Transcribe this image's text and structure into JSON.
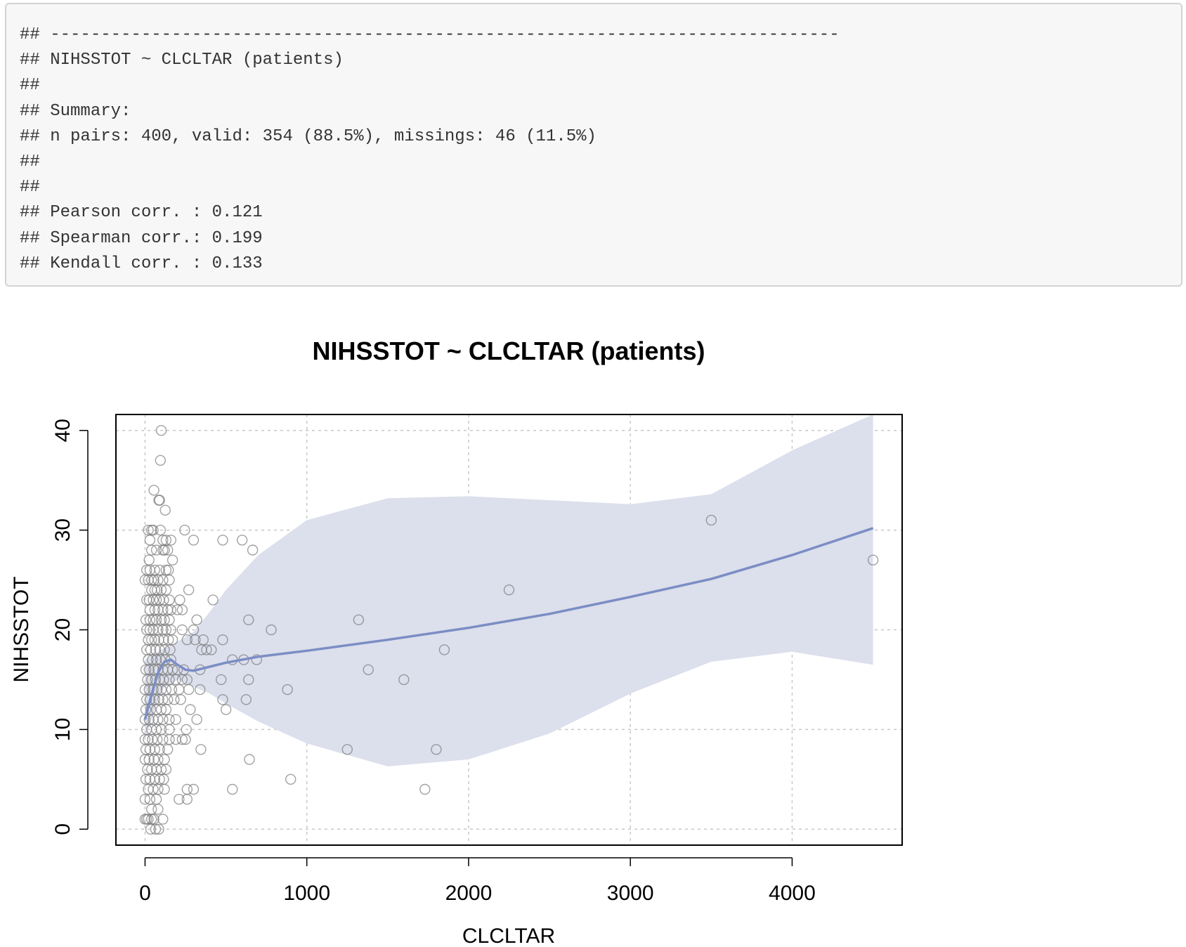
{
  "console": {
    "lines": [
      "## ------------------------------------------------------------------------------",
      "## NIHSSTOT ~ CLCLTAR (patients)",
      "##",
      "## Summary:",
      "## n pairs: 400, valid: 354 (88.5%), missings: 46 (11.5%)",
      "##",
      "##",
      "## Pearson corr. : 0.121",
      "## Spearman corr.: 0.199",
      "## Kendall corr. : 0.133"
    ]
  },
  "chart_data": {
    "type": "scatter",
    "title": "NIHSSTOT ~ CLCLTAR (patients)",
    "xlabel": "CLCLTAR",
    "ylabel": "NIHSSTOT",
    "xlim": [
      -180,
      4680
    ],
    "ylim": [
      -1.6,
      41.6
    ],
    "xticks": [
      0,
      1000,
      2000,
      3000,
      4000
    ],
    "xtick_labels": [
      "0",
      "1000",
      "2000",
      "3000",
      "4000"
    ],
    "yticks": [
      0,
      10,
      20,
      30,
      40
    ],
    "ytick_labels": [
      "0",
      "10",
      "20",
      "30",
      "40"
    ],
    "grid": true,
    "colors": {
      "points": "#7a7a7a",
      "smooth_line": "#7b8dc4",
      "confidence_band": "#dcdfec",
      "grid": "#c8c8c8"
    },
    "points": [
      [
        100,
        40
      ],
      [
        95,
        37
      ],
      [
        55,
        34
      ],
      [
        85,
        33
      ],
      [
        90,
        33
      ],
      [
        125,
        32
      ],
      [
        20,
        30
      ],
      [
        40,
        30
      ],
      [
        50,
        30
      ],
      [
        95,
        30
      ],
      [
        245,
        30
      ],
      [
        30,
        29
      ],
      [
        110,
        29
      ],
      [
        130,
        29
      ],
      [
        160,
        29
      ],
      [
        300,
        29
      ],
      [
        480,
        29
      ],
      [
        600,
        29
      ],
      [
        40,
        28
      ],
      [
        70,
        28
      ],
      [
        110,
        28
      ],
      [
        120,
        28
      ],
      [
        140,
        28
      ],
      [
        665,
        28
      ],
      [
        25,
        27
      ],
      [
        170,
        27
      ],
      [
        10,
        26
      ],
      [
        30,
        26
      ],
      [
        60,
        26
      ],
      [
        90,
        26
      ],
      [
        130,
        26
      ],
      [
        145,
        26
      ],
      [
        0,
        25
      ],
      [
        20,
        25
      ],
      [
        40,
        25
      ],
      [
        55,
        25
      ],
      [
        80,
        25
      ],
      [
        110,
        25
      ],
      [
        150,
        25
      ],
      [
        40,
        24
      ],
      [
        60,
        24
      ],
      [
        75,
        24
      ],
      [
        100,
        24
      ],
      [
        130,
        24
      ],
      [
        270,
        24
      ],
      [
        2250,
        24
      ],
      [
        10,
        23
      ],
      [
        25,
        23
      ],
      [
        50,
        23
      ],
      [
        70,
        23
      ],
      [
        90,
        23
      ],
      [
        115,
        23
      ],
      [
        150,
        23
      ],
      [
        215,
        23
      ],
      [
        420,
        23
      ],
      [
        30,
        22
      ],
      [
        60,
        22
      ],
      [
        80,
        22
      ],
      [
        110,
        22
      ],
      [
        140,
        22
      ],
      [
        160,
        22
      ],
      [
        200,
        22
      ],
      [
        230,
        22
      ],
      [
        5,
        21
      ],
      [
        30,
        21
      ],
      [
        50,
        21
      ],
      [
        70,
        21
      ],
      [
        100,
        21
      ],
      [
        120,
        21
      ],
      [
        150,
        21
      ],
      [
        320,
        21
      ],
      [
        640,
        21
      ],
      [
        1320,
        21
      ],
      [
        10,
        20
      ],
      [
        30,
        20
      ],
      [
        50,
        20
      ],
      [
        80,
        20
      ],
      [
        110,
        20
      ],
      [
        130,
        20
      ],
      [
        160,
        20
      ],
      [
        230,
        20
      ],
      [
        300,
        20
      ],
      [
        780,
        20
      ],
      [
        20,
        19
      ],
      [
        40,
        19
      ],
      [
        60,
        19
      ],
      [
        85,
        19
      ],
      [
        115,
        19
      ],
      [
        145,
        19
      ],
      [
        170,
        19
      ],
      [
        260,
        19
      ],
      [
        310,
        19
      ],
      [
        360,
        19
      ],
      [
        480,
        19
      ],
      [
        10,
        18
      ],
      [
        35,
        18
      ],
      [
        65,
        18
      ],
      [
        90,
        18
      ],
      [
        120,
        18
      ],
      [
        155,
        18
      ],
      [
        350,
        18
      ],
      [
        380,
        18
      ],
      [
        410,
        18
      ],
      [
        1850,
        18
      ],
      [
        20,
        17
      ],
      [
        45,
        17
      ],
      [
        70,
        17
      ],
      [
        95,
        17
      ],
      [
        125,
        17
      ],
      [
        160,
        17
      ],
      [
        540,
        17
      ],
      [
        610,
        17
      ],
      [
        690,
        17
      ],
      [
        5,
        16
      ],
      [
        25,
        16
      ],
      [
        55,
        16
      ],
      [
        80,
        16
      ],
      [
        110,
        16
      ],
      [
        140,
        16
      ],
      [
        170,
        16
      ],
      [
        200,
        16
      ],
      [
        240,
        16
      ],
      [
        340,
        16
      ],
      [
        1380,
        16
      ],
      [
        15,
        15
      ],
      [
        40,
        15
      ],
      [
        65,
        15
      ],
      [
        90,
        15
      ],
      [
        115,
        15
      ],
      [
        150,
        15
      ],
      [
        190,
        15
      ],
      [
        230,
        15
      ],
      [
        260,
        15
      ],
      [
        470,
        15
      ],
      [
        640,
        15
      ],
      [
        1600,
        15
      ],
      [
        0,
        14
      ],
      [
        25,
        14
      ],
      [
        50,
        14
      ],
      [
        75,
        14
      ],
      [
        100,
        14
      ],
      [
        130,
        14
      ],
      [
        165,
        14
      ],
      [
        210,
        14
      ],
      [
        270,
        14
      ],
      [
        340,
        14
      ],
      [
        880,
        14
      ],
      [
        10,
        13
      ],
      [
        30,
        13
      ],
      [
        60,
        13
      ],
      [
        85,
        13
      ],
      [
        110,
        13
      ],
      [
        140,
        13
      ],
      [
        180,
        13
      ],
      [
        220,
        13
      ],
      [
        480,
        13
      ],
      [
        625,
        13
      ],
      [
        5,
        12
      ],
      [
        35,
        12
      ],
      [
        70,
        12
      ],
      [
        100,
        12
      ],
      [
        130,
        12
      ],
      [
        280,
        12
      ],
      [
        500,
        12
      ],
      [
        0,
        11
      ],
      [
        25,
        11
      ],
      [
        50,
        11
      ],
      [
        80,
        11
      ],
      [
        110,
        11
      ],
      [
        150,
        11
      ],
      [
        190,
        11
      ],
      [
        320,
        11
      ],
      [
        10,
        10
      ],
      [
        40,
        10
      ],
      [
        70,
        10
      ],
      [
        100,
        10
      ],
      [
        150,
        10
      ],
      [
        255,
        10
      ],
      [
        0,
        9
      ],
      [
        20,
        9
      ],
      [
        45,
        9
      ],
      [
        75,
        9
      ],
      [
        110,
        9
      ],
      [
        150,
        9
      ],
      [
        190,
        9
      ],
      [
        230,
        9
      ],
      [
        250,
        9
      ],
      [
        5,
        8
      ],
      [
        30,
        8
      ],
      [
        60,
        8
      ],
      [
        90,
        8
      ],
      [
        140,
        8
      ],
      [
        345,
        8
      ],
      [
        1250,
        8
      ],
      [
        1800,
        8
      ],
      [
        0,
        7
      ],
      [
        25,
        7
      ],
      [
        55,
        7
      ],
      [
        80,
        7
      ],
      [
        120,
        7
      ],
      [
        645,
        7
      ],
      [
        15,
        6
      ],
      [
        40,
        6
      ],
      [
        70,
        6
      ],
      [
        100,
        6
      ],
      [
        130,
        6
      ],
      [
        5,
        5
      ],
      [
        30,
        5
      ],
      [
        60,
        5
      ],
      [
        90,
        5
      ],
      [
        115,
        5
      ],
      [
        900,
        5
      ],
      [
        20,
        4
      ],
      [
        50,
        4
      ],
      [
        80,
        4
      ],
      [
        120,
        4
      ],
      [
        260,
        4
      ],
      [
        300,
        4
      ],
      [
        540,
        4
      ],
      [
        1730,
        4
      ],
      [
        0,
        3
      ],
      [
        30,
        3
      ],
      [
        70,
        3
      ],
      [
        210,
        3
      ],
      [
        260,
        3
      ],
      [
        40,
        2
      ],
      [
        80,
        2
      ],
      [
        0,
        1
      ],
      [
        10,
        1
      ],
      [
        20,
        1
      ],
      [
        40,
        1
      ],
      [
        55,
        1
      ],
      [
        110,
        1
      ],
      [
        35,
        0
      ],
      [
        65,
        0
      ],
      [
        85,
        0
      ],
      [
        3500,
        31
      ],
      [
        4500,
        27
      ]
    ],
    "smooth": {
      "x": [
        0,
        40,
        80,
        120,
        160,
        200,
        250,
        300,
        400,
        500,
        700,
        1000,
        1500,
        2000,
        2500,
        3000,
        3500,
        4000,
        4500
      ],
      "y": [
        11,
        13.5,
        15.7,
        16.8,
        17.0,
        16.5,
        16.0,
        15.9,
        16.3,
        16.7,
        17.3,
        17.9,
        19.0,
        20.2,
        21.6,
        23.3,
        25.1,
        27.5,
        30.2
      ]
    },
    "confidence_band": {
      "x": [
        0,
        100,
        200,
        300,
        400,
        500,
        700,
        1000,
        1500,
        2000,
        2500,
        3000,
        3500,
        4000,
        4500
      ],
      "upper": [
        17,
        18,
        18.8,
        19.8,
        21.8,
        24,
        27.5,
        31,
        33.2,
        33.4,
        33,
        32.6,
        33.6,
        38,
        46
      ],
      "lower": [
        9,
        14,
        15,
        14.3,
        13.6,
        12.6,
        10.8,
        8.6,
        6.3,
        7,
        9.6,
        13.6,
        16.8,
        17.8,
        16.5
      ]
    }
  }
}
